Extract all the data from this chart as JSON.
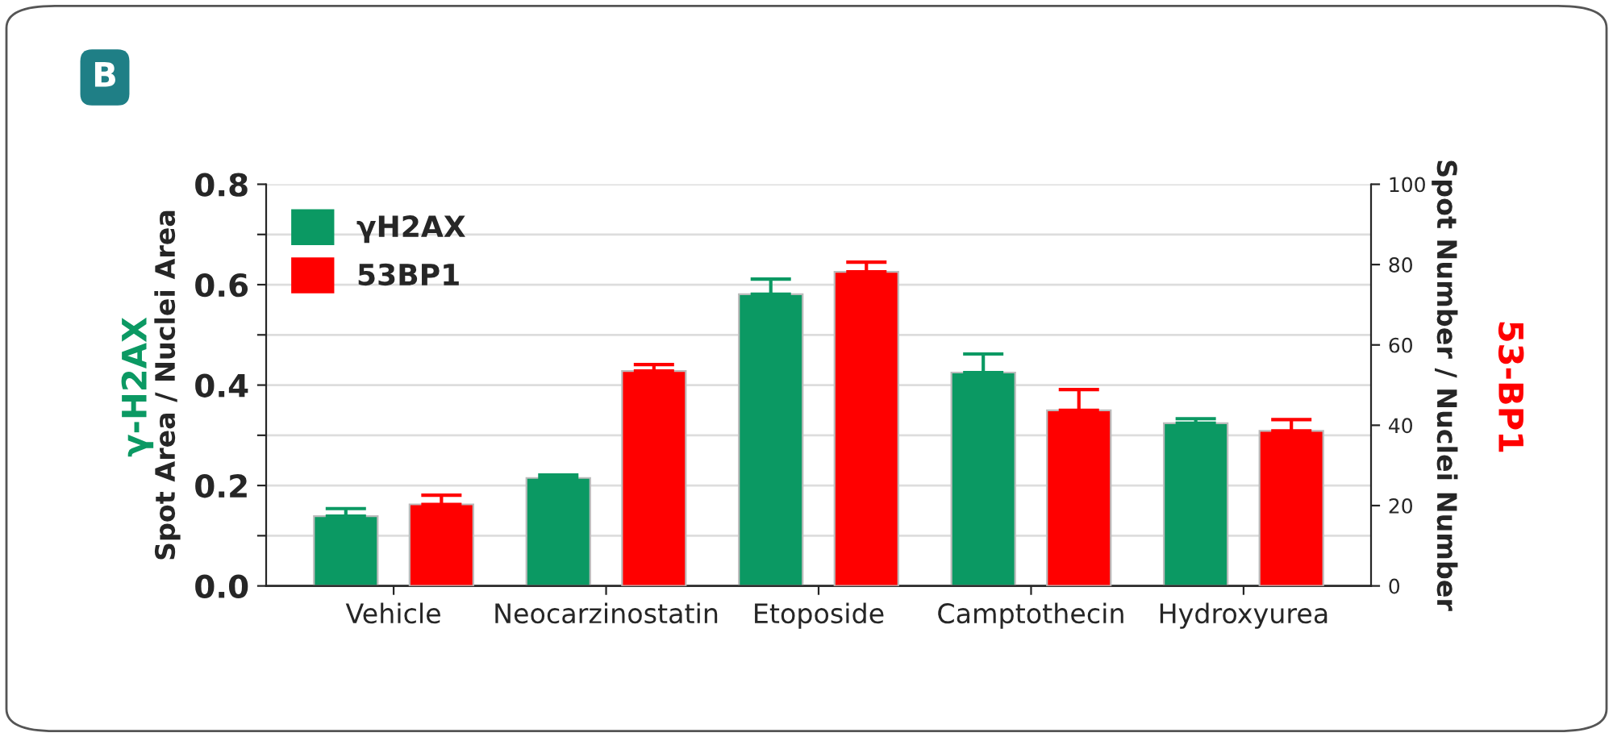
{
  "chart_data": {
    "type": "bar",
    "categories": [
      "Vehicle",
      "Neocarzinostatin",
      "Etoposide",
      "Camptothecin",
      "Hydroxyurea"
    ],
    "series": [
      {
        "name": "γH2AX",
        "color": "#0b9963",
        "values": [
          0.139,
          0.215,
          0.581,
          0.425,
          0.324
        ],
        "errors": [
          0.015,
          0.006,
          0.03,
          0.037,
          0.009
        ]
      },
      {
        "name": "53BP1",
        "color": "#ff0000",
        "axis": "y2",
        "values": [
          20.3,
          53.5,
          78.2,
          43.7,
          38.6
        ],
        "errors": [
          2.3,
          1.6,
          2.4,
          5.2,
          2.8
        ]
      }
    ],
    "ylabel": "Spot Area / Nuclei Area",
    "y2label": "Spot Number / Nuclei Number",
    "ylim": [
      0,
      0.8
    ],
    "yticks": [
      {
        "value": 0,
        "label": "0.0"
      },
      {
        "value": 0.1,
        "label": null
      },
      {
        "value": 0.2,
        "label": "0.2"
      },
      {
        "value": 0.3,
        "label": null
      },
      {
        "value": 0.4,
        "label": "0.4"
      },
      {
        "value": 0.5,
        "label": null
      },
      {
        "value": 0.6,
        "label": "0.6"
      },
      {
        "value": 0.7,
        "label": null
      },
      {
        "value": 0.8,
        "label": "0.8"
      }
    ],
    "y2lim": [
      0,
      100
    ],
    "y2ticks": [
      0,
      20,
      40,
      60,
      80,
      100
    ],
    "grid": "y",
    "legend": "top left",
    "annotations": [
      "B",
      "γ-H2AX",
      "53-BP1"
    ]
  }
}
